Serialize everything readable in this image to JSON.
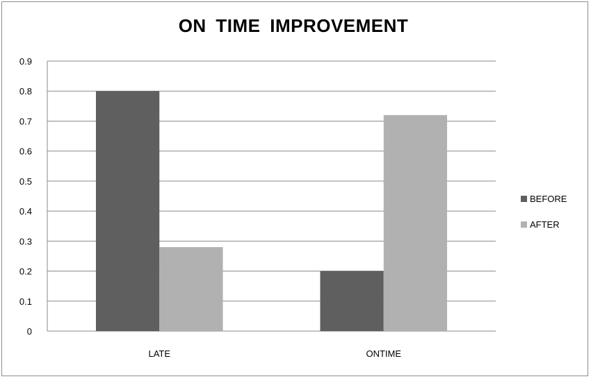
{
  "chart_data": {
    "type": "bar",
    "title": "ON TIME IMPROVEMENT",
    "xlabel": "",
    "ylabel": "",
    "categories": [
      "LATE",
      "ONTIME"
    ],
    "series": [
      {
        "name": "BEFORE",
        "values": [
          0.8,
          0.2
        ],
        "color": "#5f5f5f"
      },
      {
        "name": "AFTER",
        "values": [
          0.28,
          0.72
        ],
        "color": "#b1b1b1"
      }
    ],
    "ylim": [
      0,
      0.9
    ],
    "yticks": [
      "0",
      "0.1",
      "0.2",
      "0.3",
      "0.4",
      "0.5",
      "0.6",
      "0.7",
      "0.8",
      "0.9"
    ],
    "grid": true,
    "legend_position": "right"
  }
}
